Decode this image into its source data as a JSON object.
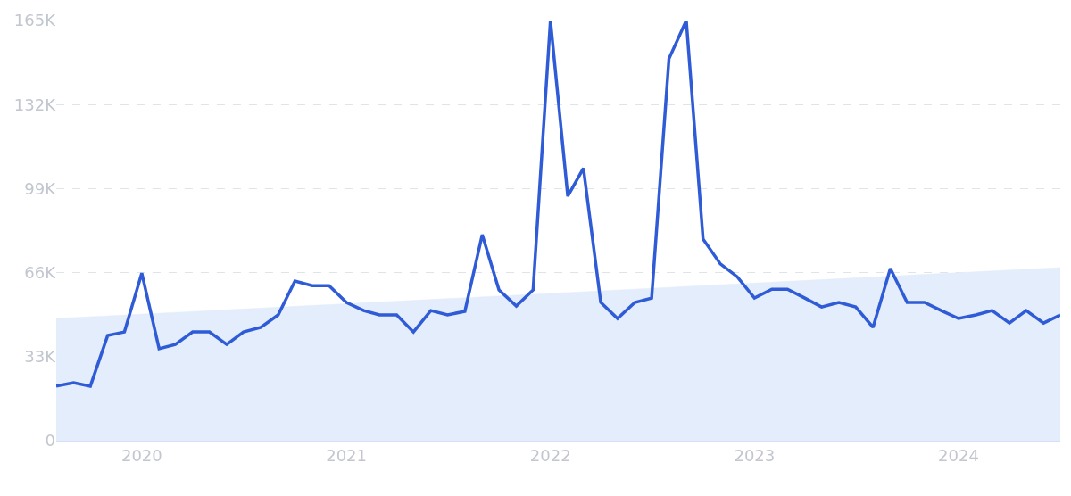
{
  "chart_data": {
    "type": "line",
    "x": [
      "2019-08",
      "2019-09",
      "2019-10",
      "2019-11",
      "2019-12",
      "2020-01",
      "2020-02",
      "2020-03",
      "2020-04",
      "2020-05",
      "2020-06",
      "2020-07",
      "2020-08",
      "2020-09",
      "2020-10",
      "2020-11",
      "2020-12",
      "2021-01",
      "2021-02",
      "2021-03",
      "2021-04",
      "2021-05",
      "2021-06",
      "2021-07",
      "2021-08",
      "2021-09",
      "2021-10",
      "2021-11",
      "2021-12",
      "2022-01",
      "2022-02",
      "2022-03",
      "2022-04",
      "2022-05",
      "2022-06",
      "2022-07",
      "2022-08",
      "2022-09",
      "2022-10",
      "2022-11",
      "2022-12",
      "2023-01",
      "2023-02",
      "2023-03",
      "2023-04",
      "2023-05",
      "2023-06",
      "2023-07",
      "2023-08",
      "2023-09",
      "2023-10",
      "2023-11",
      "2023-12",
      "2024-01",
      "2024-02",
      "2024-03",
      "2024-04",
      "2024-05",
      "2024-06",
      "2024-07"
    ],
    "series": [
      {
        "type": "area",
        "color": "#e3edfb",
        "x": [
          "2019-08",
          "2024-07"
        ],
        "values": [
          48,
          68
        ]
      },
      {
        "color": "#2f5cd6",
        "values": [
          21.4,
          22.8,
          21.4,
          41.3,
          42.7,
          65.8,
          36.1,
          37.8,
          42.7,
          42.7,
          37.8,
          42.7,
          44.5,
          49.4,
          62.7,
          60.9,
          60.9,
          54.3,
          51.1,
          49.4,
          49.4,
          42.7,
          51.1,
          49.4,
          50.8,
          80.9,
          59.2,
          52.9,
          59.2,
          165,
          96,
          107,
          54.3,
          48,
          54.3,
          56,
          150,
          165,
          79.2,
          69.4,
          64.4,
          56,
          59.5,
          59.5,
          56,
          52.5,
          54.3,
          52.5,
          44.5,
          67.6,
          54.3,
          54.3,
          51.1,
          48,
          49.4,
          51.1,
          46.2,
          51.1,
          46.2,
          49.4
        ]
      }
    ],
    "xlim": [
      "2019-08",
      "2024-07"
    ],
    "xticks": [
      {
        "value": "2020-01",
        "label": "2020"
      },
      {
        "value": "2021-01",
        "label": "2021"
      },
      {
        "value": "2022-01",
        "label": "2022"
      },
      {
        "value": "2023-01",
        "label": "2023"
      },
      {
        "value": "2024-01",
        "label": "2024"
      }
    ],
    "ylim": [
      0,
      165
    ],
    "yticks": [
      {
        "value": 0,
        "label": "0"
      },
      {
        "value": 33,
        "label": "33K"
      },
      {
        "value": 66,
        "label": "66K"
      },
      {
        "value": 99,
        "label": "99K"
      },
      {
        "value": 132,
        "label": "132K"
      },
      {
        "value": 165,
        "label": "165K"
      }
    ],
    "grid": "y",
    "line_style": "solid",
    "marker": "none"
  }
}
